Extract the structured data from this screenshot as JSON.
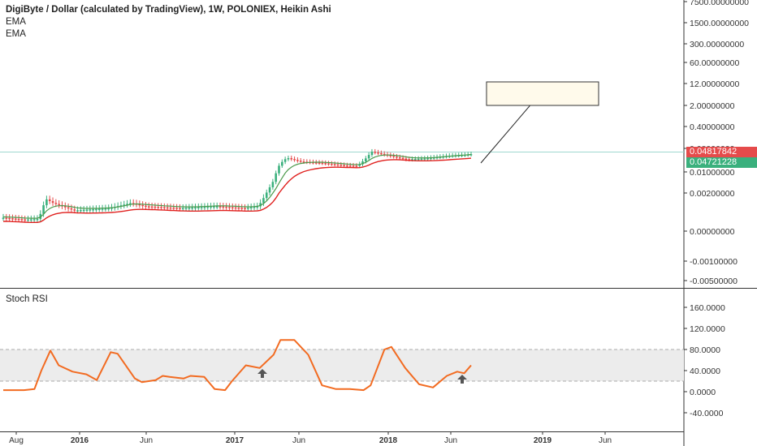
{
  "legend": {
    "title": "DigiByte / Dollar (calculated by TradingView), 1W, POLONIEX, Heikin Ashi",
    "line1": "EMA",
    "line2": "EMA"
  },
  "badges": {
    "last_price": "0.04817842",
    "ema_value": "0.04721228"
  },
  "stoch_label": "Stoch RSI",
  "colors": {
    "candle_up": "#3ab07d",
    "candle_down": "#e54b4b",
    "ema_fast": "#4c9a4c",
    "ema_slow": "#e0201e",
    "stoch": "#f26b21",
    "band": "#ececec",
    "price_line": "#9fd7d0"
  },
  "chart_data": [
    {
      "type": "candlestick",
      "title": "DigiByte / Dollar (calculated by TradingView), 1W, POLONIEX, Heikin Ashi",
      "y_scale": "custom (non-linear)",
      "y_ticks": [
        "7500.00000000",
        "1500.00000000",
        "300.00000000",
        "60.00000000",
        "12.00000000",
        "2.00000000",
        "0.40000000",
        "0.08000000",
        "0.01000000",
        "0.00200000",
        "0.00000000",
        "-0.00100000",
        "-0.00500000"
      ],
      "x_ticks": [
        "Aug",
        "2016",
        "Jun",
        "2017",
        "Jun",
        "2018",
        "Jun",
        "2019",
        "Jun"
      ],
      "bold_x_ticks": [
        "2016",
        "2017",
        "2018",
        "2019"
      ],
      "last_price": 0.04817842,
      "ema_value": 0.04721228,
      "series": [
        {
          "name": "EMA",
          "color": "#4c9a4c"
        },
        {
          "name": "EMA",
          "color": "#e0201e"
        }
      ],
      "price_profile": [
        [
          0,
          0.00045
        ],
        [
          0.03,
          0.0004
        ],
        [
          0.05,
          0.00042
        ],
        [
          0.06,
          0.0014
        ],
        [
          0.07,
          0.0011
        ],
        [
          0.1,
          0.0007
        ],
        [
          0.15,
          0.0008
        ],
        [
          0.18,
          0.0011
        ],
        [
          0.2,
          0.0009
        ],
        [
          0.25,
          0.0008
        ],
        [
          0.3,
          0.0009
        ],
        [
          0.34,
          0.0008
        ],
        [
          0.36,
          0.0009
        ],
        [
          0.37,
          0.0018
        ],
        [
          0.38,
          0.0045
        ],
        [
          0.39,
          0.02
        ],
        [
          0.4,
          0.035
        ],
        [
          0.42,
          0.025
        ],
        [
          0.45,
          0.022
        ],
        [
          0.48,
          0.018
        ],
        [
          0.5,
          0.017
        ],
        [
          0.51,
          0.03
        ],
        [
          0.52,
          0.06
        ],
        [
          0.54,
          0.045
        ],
        [
          0.57,
          0.03
        ],
        [
          0.6,
          0.034
        ],
        [
          0.63,
          0.042
        ],
        [
          0.65,
          0.045
        ],
        [
          0.66,
          0.0482
        ]
      ],
      "annotation": "arrow to highlighted box near 12.00000000"
    },
    {
      "type": "line",
      "title": "Stoch RSI",
      "y_ticks": [
        "160.0000",
        "120.0000",
        "80.0000",
        "40.0000",
        "0.0000",
        "-40.0000"
      ],
      "band": [
        20,
        80
      ],
      "points": [
        [
          0,
          3
        ],
        [
          0.03,
          3
        ],
        [
          0.045,
          5
        ],
        [
          0.055,
          40
        ],
        [
          0.068,
          78
        ],
        [
          0.08,
          50
        ],
        [
          0.1,
          38
        ],
        [
          0.12,
          33
        ],
        [
          0.135,
          22
        ],
        [
          0.155,
          75
        ],
        [
          0.165,
          72
        ],
        [
          0.19,
          25
        ],
        [
          0.2,
          18
        ],
        [
          0.22,
          22
        ],
        [
          0.23,
          30
        ],
        [
          0.24,
          28
        ],
        [
          0.26,
          25
        ],
        [
          0.27,
          30
        ],
        [
          0.29,
          28
        ],
        [
          0.305,
          5
        ],
        [
          0.32,
          3
        ],
        [
          0.33,
          20
        ],
        [
          0.35,
          50
        ],
        [
          0.37,
          45
        ],
        [
          0.39,
          70
        ],
        [
          0.4,
          98
        ],
        [
          0.42,
          98
        ],
        [
          0.44,
          70
        ],
        [
          0.46,
          12
        ],
        [
          0.48,
          5
        ],
        [
          0.5,
          5
        ],
        [
          0.52,
          3
        ],
        [
          0.53,
          12
        ],
        [
          0.55,
          80
        ],
        [
          0.56,
          85
        ],
        [
          0.58,
          45
        ],
        [
          0.6,
          14
        ],
        [
          0.62,
          8
        ],
        [
          0.64,
          30
        ],
        [
          0.655,
          38
        ],
        [
          0.665,
          35
        ],
        [
          0.675,
          50
        ]
      ],
      "markers": [
        "up-arrow near 2017 Q2",
        "up-arrow near 2018 Jun"
      ]
    }
  ]
}
